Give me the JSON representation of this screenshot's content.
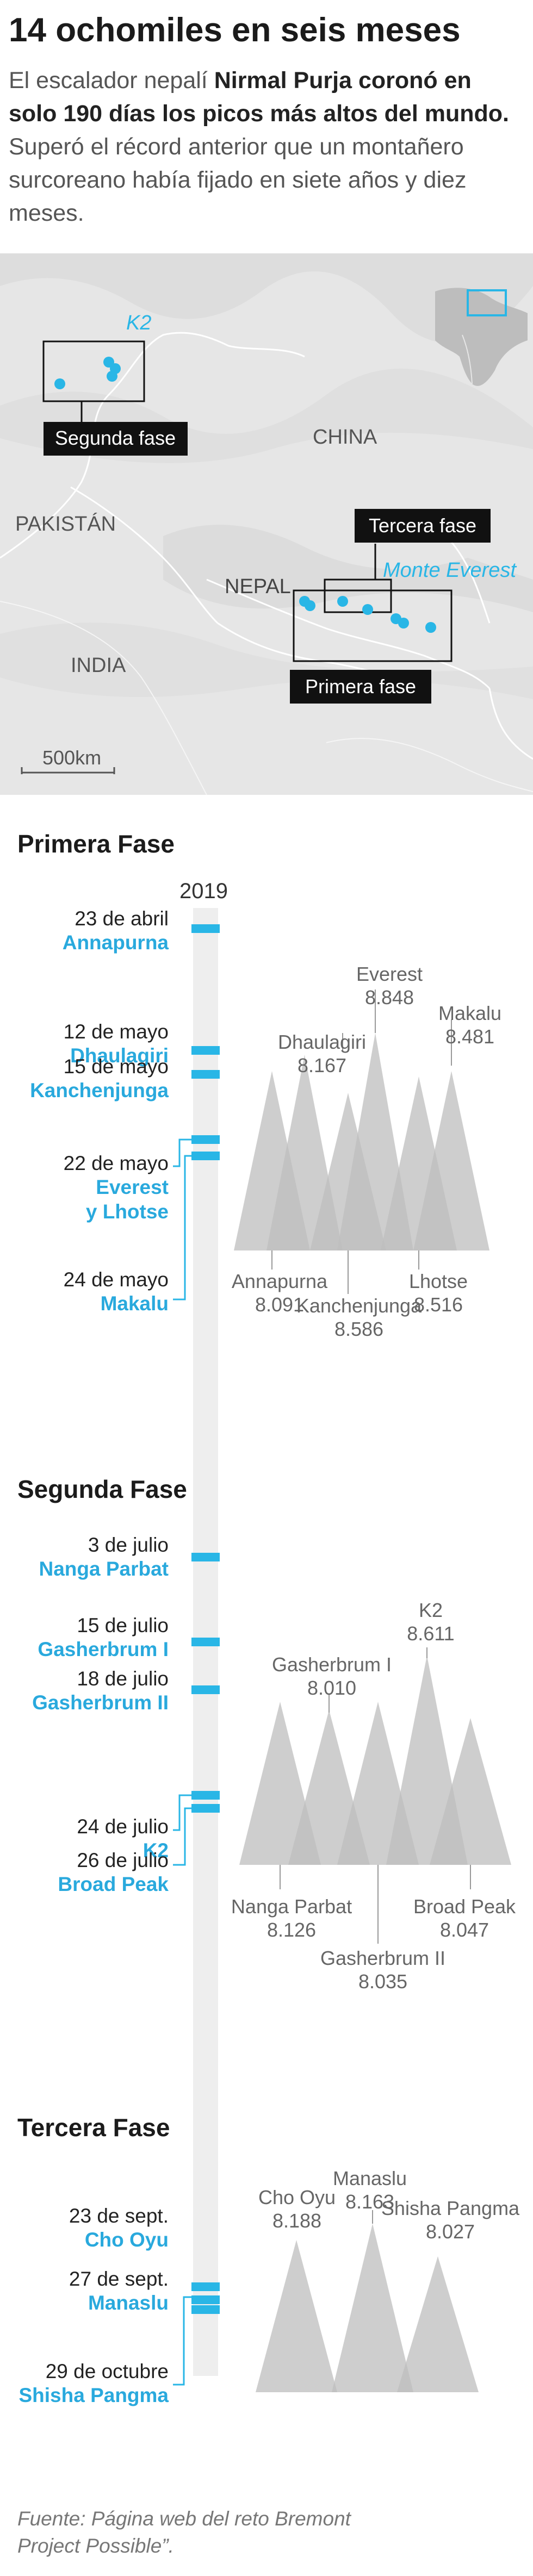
{
  "header": {
    "title": "14 ochomiles en seis meses",
    "lede_1": "El escalador nepalí ",
    "lede_bold": "Nirmal Purja coronó en solo 190 días los picos más altos del mundo.",
    "lede_2": " Superó el récord anterior que un montañero surcoreano había fijado en siete años y diez meses."
  },
  "map": {
    "labels": {
      "k2": "K2",
      "china": "CHINA",
      "pakistan": "PAKISTÁN",
      "nepal": "NEPAL",
      "india": "INDIA",
      "everest": "Monte Everest",
      "scale": "500km"
    },
    "phase_boxes": {
      "second": "Segunda fase",
      "third": "Tercera fase",
      "first": "Primera fase"
    },
    "colors": {
      "accent": "#29b6e6",
      "land": "#d9d9d9",
      "box": "#111111"
    }
  },
  "timeline": {
    "year": "2019",
    "phases": [
      {
        "title": "Primera Fase",
        "events": [
          {
            "date": "23 de abril",
            "peak": "Annapurna"
          },
          {
            "date": "12 de mayo",
            "peak": "Dhaulagiri"
          },
          {
            "date": "15 de mayo",
            "peak": "Kanchenjunga"
          },
          {
            "date": "22 de mayo",
            "peak": "Everest",
            "peak2": "y Lhotse"
          },
          {
            "date": "24 de mayo",
            "peak": "Makalu"
          }
        ],
        "peaks": [
          {
            "name": "Annapurna",
            "alt": "8.091"
          },
          {
            "name": "Dhaulagiri",
            "alt": "8.167"
          },
          {
            "name": "Kanchenjunga",
            "alt": "8.586"
          },
          {
            "name": "Everest",
            "alt": "8.848"
          },
          {
            "name": "Lhotse",
            "alt": "8.516"
          },
          {
            "name": "Makalu",
            "alt": "8.481"
          }
        ]
      },
      {
        "title": "Segunda Fase",
        "events": [
          {
            "date": "3 de julio",
            "peak": "Nanga Parbat"
          },
          {
            "date": "15 de julio",
            "peak": "Gasherbrum I"
          },
          {
            "date": "18 de julio",
            "peak": "Gasherbrum II"
          },
          {
            "date": "24 de julio",
            "peak": "K2"
          },
          {
            "date": "26 de julio",
            "peak": "Broad Peak"
          }
        ],
        "peaks": [
          {
            "name": "Nanga Parbat",
            "alt": "8.126"
          },
          {
            "name": "Gasherbrum I",
            "alt": "8.010"
          },
          {
            "name": "Gasherbrum II",
            "alt": "8.035"
          },
          {
            "name": "K2",
            "alt": "8.611"
          },
          {
            "name": "Broad Peak",
            "alt": "8.047"
          }
        ]
      },
      {
        "title": "Tercera Fase",
        "events": [
          {
            "date": "23 de sept.",
            "peak": "Cho Oyu"
          },
          {
            "date": "27 de sept.",
            "peak": "Manaslu"
          },
          {
            "date": "29 de octubre",
            "peak": "Shisha Pangma"
          }
        ],
        "peaks": [
          {
            "name": "Cho Oyu",
            "alt": "8.188"
          },
          {
            "name": "Manaslu",
            "alt": "8.163"
          },
          {
            "name": "Shisha Pangma",
            "alt": "8.027"
          }
        ]
      }
    ]
  },
  "footer": {
    "source": "Fuente: Página web del reto Bremont Project Possible”."
  }
}
